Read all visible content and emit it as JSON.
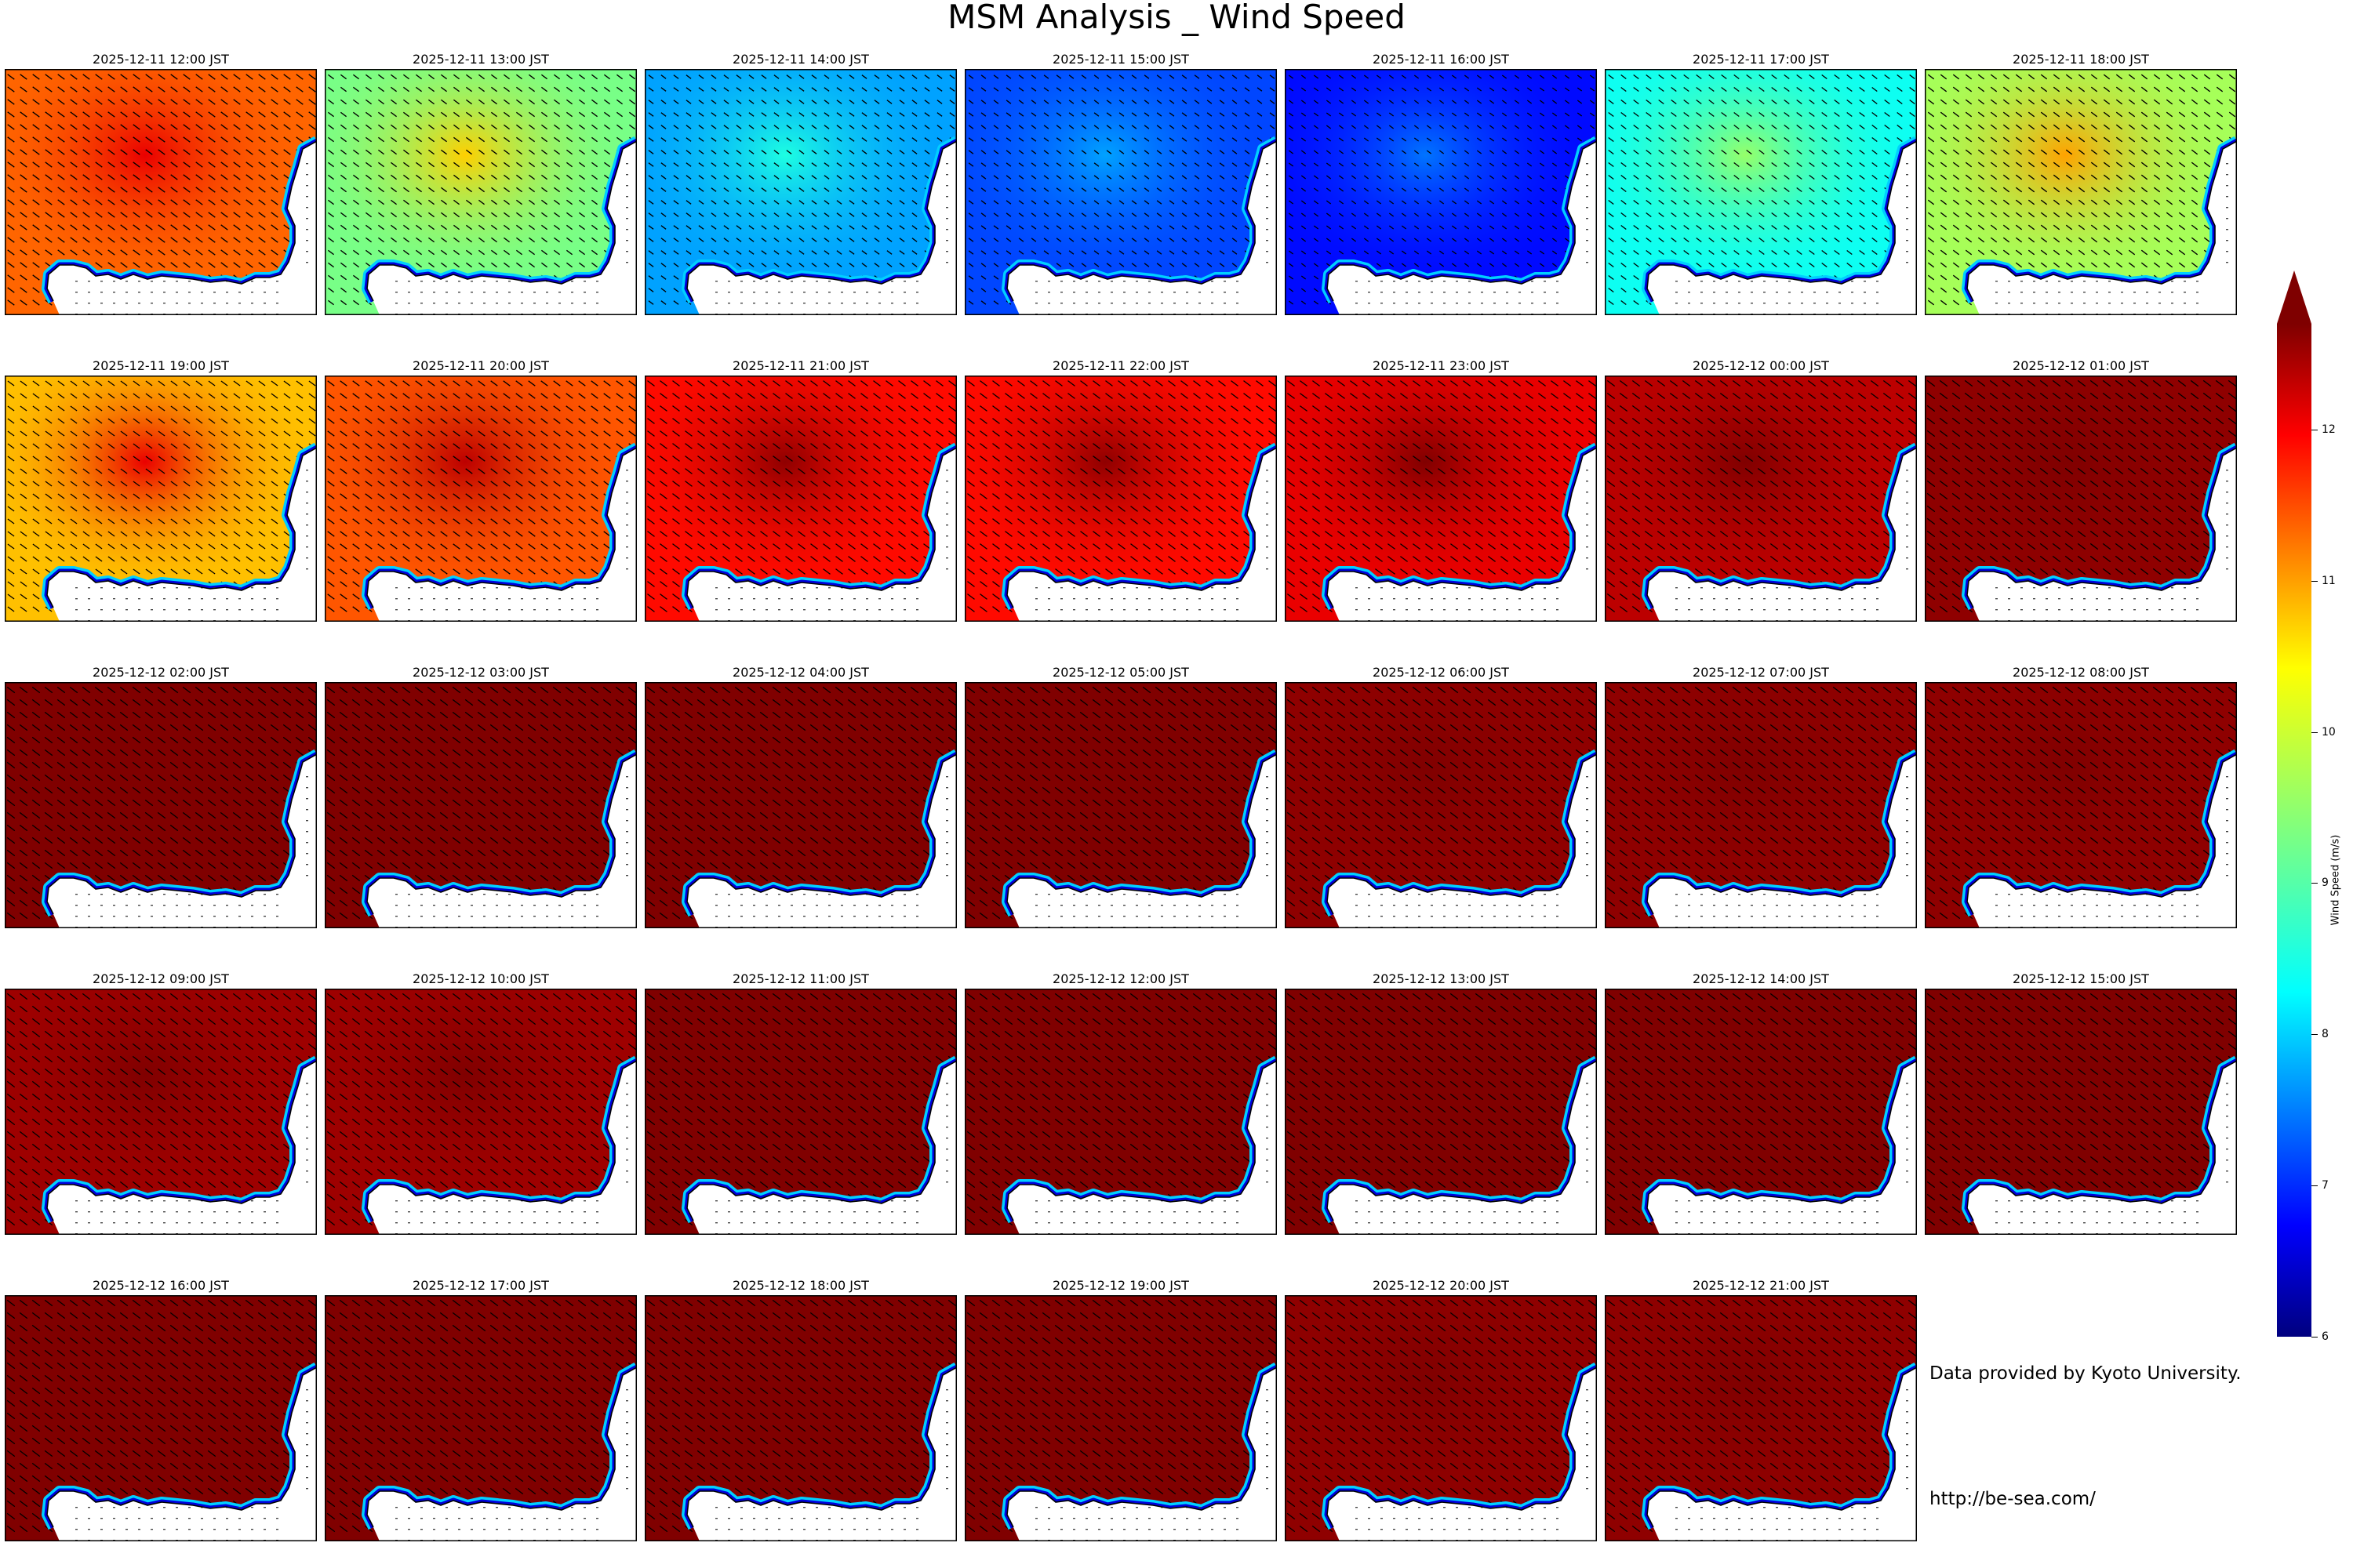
{
  "title": "MSM Analysis _ Wind Speed",
  "chart_data": {
    "type": "heatmap",
    "title": "MSM Analysis _ Wind Speed",
    "colorbar": {
      "label": "Wind Speed (m/s)",
      "min": 6,
      "max": 12.7,
      "extend": "max",
      "ticks": [
        6,
        7,
        8,
        9,
        10,
        11,
        12
      ],
      "colormap": "jet"
    },
    "panels": [
      {
        "label": "2025-12-11 12:00 JST",
        "sea_speed": 11.2,
        "hot_spot": 12.0
      },
      {
        "label": "2025-12-11 13:00 JST",
        "sea_speed": 9.3,
        "hot_spot": 10.5
      },
      {
        "label": "2025-12-11 14:00 JST",
        "sea_speed": 7.9,
        "hot_spot": 8.7
      },
      {
        "label": "2025-12-11 15:00 JST",
        "sea_speed": 7.3,
        "hot_spot": 7.9
      },
      {
        "label": "2025-12-11 16:00 JST",
        "sea_speed": 6.9,
        "hot_spot": 7.6
      },
      {
        "label": "2025-12-11 17:00 JST",
        "sea_speed": 8.6,
        "hot_spot": 9.5
      },
      {
        "label": "2025-12-11 18:00 JST",
        "sea_speed": 9.6,
        "hot_spot": 10.8
      },
      {
        "label": "2025-12-11 19:00 JST",
        "sea_speed": 10.6,
        "hot_spot": 12.0
      },
      {
        "label": "2025-12-11 20:00 JST",
        "sea_speed": 11.3,
        "hot_spot": 12.3
      },
      {
        "label": "2025-12-11 21:00 JST",
        "sea_speed": 11.8,
        "hot_spot": 12.6
      },
      {
        "label": "2025-12-11 22:00 JST",
        "sea_speed": 11.8,
        "hot_spot": 12.6
      },
      {
        "label": "2025-12-11 23:00 JST",
        "sea_speed": 12.0,
        "hot_spot": 12.7
      },
      {
        "label": "2025-12-12 00:00 JST",
        "sea_speed": 12.3,
        "hot_spot": 12.7
      },
      {
        "label": "2025-12-12 01:00 JST",
        "sea_speed": 12.6,
        "hot_spot": 12.7
      },
      {
        "label": "2025-12-12 02:00 JST",
        "sea_speed": 12.7,
        "hot_spot": 12.7
      },
      {
        "label": "2025-12-12 03:00 JST",
        "sea_speed": 12.7,
        "hot_spot": 12.7
      },
      {
        "label": "2025-12-12 04:00 JST",
        "sea_speed": 12.7,
        "hot_spot": 12.7
      },
      {
        "label": "2025-12-12 05:00 JST",
        "sea_speed": 12.7,
        "hot_spot": 12.7
      },
      {
        "label": "2025-12-12 06:00 JST",
        "sea_speed": 12.6,
        "hot_spot": 12.7
      },
      {
        "label": "2025-12-12 07:00 JST",
        "sea_speed": 12.6,
        "hot_spot": 12.7
      },
      {
        "label": "2025-12-12 08:00 JST",
        "sea_speed": 12.6,
        "hot_spot": 12.7
      },
      {
        "label": "2025-12-12 09:00 JST",
        "sea_speed": 12.5,
        "hot_spot": 12.7
      },
      {
        "label": "2025-12-12 10:00 JST",
        "sea_speed": 12.5,
        "hot_spot": 12.7
      },
      {
        "label": "2025-12-12 11:00 JST",
        "sea_speed": 12.7,
        "hot_spot": 12.7
      },
      {
        "label": "2025-12-12 12:00 JST",
        "sea_speed": 12.7,
        "hot_spot": 12.7
      },
      {
        "label": "2025-12-12 13:00 JST",
        "sea_speed": 12.7,
        "hot_spot": 12.7
      },
      {
        "label": "2025-12-12 14:00 JST",
        "sea_speed": 12.7,
        "hot_spot": 12.7
      },
      {
        "label": "2025-12-12 15:00 JST",
        "sea_speed": 12.7,
        "hot_spot": 12.7
      },
      {
        "label": "2025-12-12 16:00 JST",
        "sea_speed": 12.7,
        "hot_spot": 12.7
      },
      {
        "label": "2025-12-12 17:00 JST",
        "sea_speed": 12.7,
        "hot_spot": 12.7
      },
      {
        "label": "2025-12-12 18:00 JST",
        "sea_speed": 12.7,
        "hot_spot": 12.7
      },
      {
        "label": "2025-12-12 19:00 JST",
        "sea_speed": 12.7,
        "hot_spot": 12.7
      },
      {
        "label": "2025-12-12 20:00 JST",
        "sea_speed": 12.6,
        "hot_spot": 12.7
      },
      {
        "label": "2025-12-12 21:00 JST",
        "sea_speed": 12.6,
        "hot_spot": 12.7
      }
    ]
  },
  "footer": {
    "credit": "Data provided by Kyoto University.",
    "url": "http://be-sea.com/"
  }
}
